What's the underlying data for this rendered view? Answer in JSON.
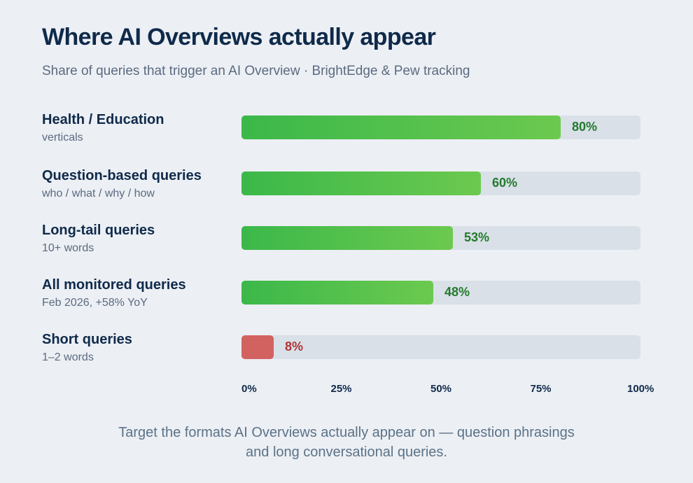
{
  "header": {
    "title": "Where AI Overviews actually appear",
    "subtitle": "Share of queries that trigger an AI Overview · BrightEdge & Pew tracking"
  },
  "chart_data": {
    "type": "bar",
    "orientation": "horizontal",
    "xlim": [
      0,
      100
    ],
    "x_ticks": [
      "0%",
      "25%",
      "50%",
      "75%",
      "100%"
    ],
    "categories": [
      {
        "label": "Health / Education",
        "sublabel": "verticals",
        "value": 80,
        "value_label": "80%",
        "color": "#4cbd4c"
      },
      {
        "label": "Question-based queries",
        "sublabel": "who / what / why / how",
        "value": 60,
        "value_label": "60%",
        "color": "#4cbd4c"
      },
      {
        "label": "Long-tail queries",
        "sublabel": "10+ words",
        "value": 53,
        "value_label": "53%",
        "color": "#4cbd4c"
      },
      {
        "label": "All monitored queries",
        "sublabel": "Feb 2026, +58% YoY",
        "value": 48,
        "value_label": "48%",
        "color": "#4cbd4c"
      },
      {
        "label": "Short queries",
        "sublabel": "1–2 words",
        "value": 8,
        "value_label": "8%",
        "color": "#d26260"
      }
    ],
    "grid": false,
    "legend": "none"
  },
  "footer": {
    "line1": "Target the formats AI Overviews actually appear on — question phrasings",
    "line2": "and long conversational queries."
  },
  "colors": {
    "background": "#eceff4",
    "track": "#d9e0e8",
    "positive_bar": "#4cbd4c",
    "negative_bar": "#d26260",
    "title": "#0f2a4a"
  }
}
